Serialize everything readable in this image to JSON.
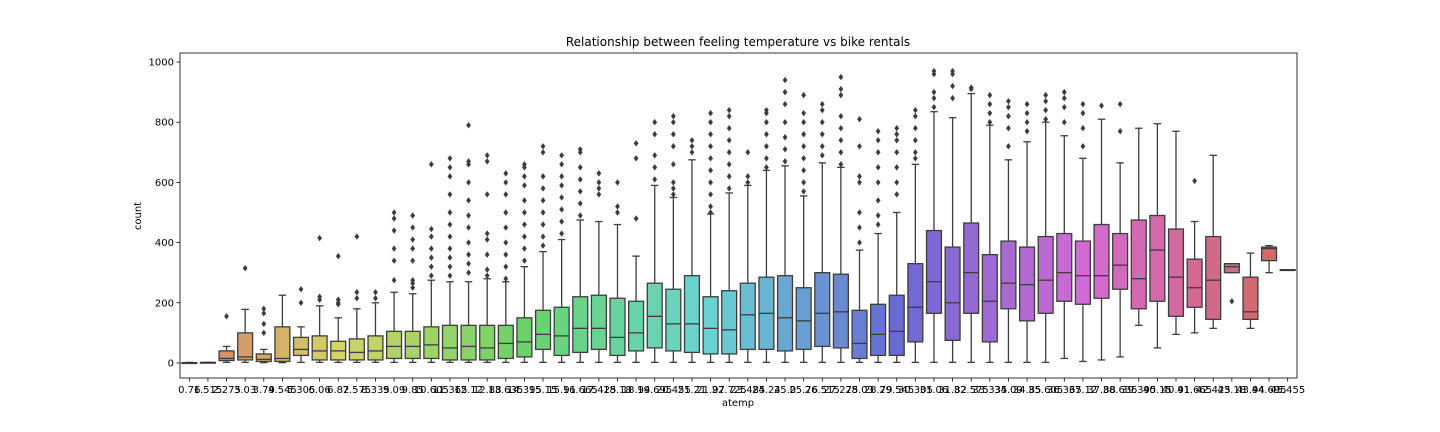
{
  "chart_data": {
    "type": "box",
    "title": "Relationship between feeling temperature vs bike rentals",
    "xlabel": "atemp",
    "ylabel": "count",
    "ylim": [
      -50,
      1030
    ],
    "yticks": [
      0,
      200,
      400,
      600,
      800,
      1000
    ],
    "grid": false,
    "categories": [
      "0.76",
      "1.515",
      "2.275",
      "3.03",
      "3.79",
      "4.545",
      "5.305",
      "6.06",
      "6.82",
      "7.575",
      "8.335",
      "9.09",
      "9.85",
      "10.605",
      "11.365",
      "12.12",
      "12.88",
      "13.635",
      "14.395",
      "15.15",
      "15.91",
      "16.665",
      "17.425",
      "18.18",
      "18.94",
      "19.695",
      "20.455",
      "21.21",
      "21.97",
      "22.725",
      "23.485",
      "24.24",
      "25.0",
      "25.76",
      "26.515",
      "27.275",
      "28.03",
      "28.79",
      "29.545",
      "30.305",
      "31.06",
      "31.82",
      "32.575",
      "33.335",
      "34.09",
      "34.85",
      "35.605",
      "36.365",
      "37.12",
      "37.88",
      "38.635",
      "39.395",
      "40.15",
      "40.91",
      "41.665",
      "42.425",
      "43.18",
      "43.94",
      "44.695",
      "45.455"
    ],
    "tick_labels": [
      "0.76",
      "1.515",
      "2.275",
      "3.03",
      "3.79",
      "4.545",
      "5.305",
      "6.06",
      "6.82",
      "7.575",
      "8.335",
      "9.09",
      "9.85",
      "10.605",
      "11.365",
      "12.12",
      "12.88",
      "13.635",
      "14.395",
      "15.15",
      "15.91",
      "16.665",
      "17.425",
      "18.18",
      "18.94",
      "19.695",
      "20.455",
      "21.21",
      "21.97",
      "22.725",
      "23.485",
      "24.24",
      "25.0",
      "25.76",
      "26.515",
      "27.275",
      "28.03",
      "28.79",
      "29.545",
      "30.305",
      "31.06",
      "31.82",
      "32.575",
      "33.335",
      "34.09",
      "34.85",
      "35.605",
      "36.365",
      "37.12",
      "37.88",
      "38.635",
      "39.395",
      "40.15",
      "40.91",
      "41.665",
      "42.425",
      "43.18",
      "43.94",
      "44.695",
      "45.455"
    ],
    "boxes": [
      {
        "whislo": 1,
        "q1": 1,
        "med": 1,
        "q3": 1,
        "whishi": 2,
        "fliers": []
      },
      {
        "whislo": 1,
        "q1": 1,
        "med": 1,
        "q3": 2,
        "whishi": 2,
        "fliers": []
      },
      {
        "whislo": 2,
        "q1": 8,
        "med": 15,
        "q3": 40,
        "whishi": 55,
        "fliers": [
          155
        ]
      },
      {
        "whislo": 2,
        "q1": 10,
        "med": 20,
        "q3": 100,
        "whishi": 178,
        "fliers": [
          315
        ]
      },
      {
        "whislo": 1,
        "q1": 5,
        "med": 12,
        "q3": 30,
        "whishi": 45,
        "fliers": [
          100,
          130,
          165,
          180
        ]
      },
      {
        "whislo": 1,
        "q1": 5,
        "med": 15,
        "q3": 120,
        "whishi": 225,
        "fliers": []
      },
      {
        "whislo": 2,
        "q1": 25,
        "med": 45,
        "q3": 85,
        "whishi": 120,
        "fliers": [
          200,
          245
        ]
      },
      {
        "whislo": 2,
        "q1": 10,
        "med": 40,
        "q3": 90,
        "whishi": 190,
        "fliers": [
          210,
          220,
          415
        ]
      },
      {
        "whislo": 2,
        "q1": 10,
        "med": 40,
        "q3": 72,
        "whishi": 150,
        "fliers": [
          195,
          200,
          210,
          355
        ]
      },
      {
        "whislo": 2,
        "q1": 10,
        "med": 35,
        "q3": 80,
        "whishi": 180,
        "fliers": [
          215,
          235,
          420
        ]
      },
      {
        "whislo": 2,
        "q1": 10,
        "med": 40,
        "q3": 90,
        "whishi": 200,
        "fliers": [
          215,
          235
        ]
      },
      {
        "whislo": 2,
        "q1": 15,
        "med": 55,
        "q3": 105,
        "whishi": 235,
        "fliers": [
          275,
          340,
          380,
          440,
          480,
          500
        ]
      },
      {
        "whislo": 2,
        "q1": 15,
        "med": 55,
        "q3": 105,
        "whishi": 230,
        "fliers": [
          250,
          265,
          275,
          340,
          380,
          410,
          450,
          490
        ]
      },
      {
        "whislo": 2,
        "q1": 15,
        "med": 60,
        "q3": 120,
        "whishi": 275,
        "fliers": [
          290,
          320,
          350,
          380,
          420,
          445,
          660
        ]
      },
      {
        "whislo": 2,
        "q1": 10,
        "med": 50,
        "q3": 125,
        "whishi": 270,
        "fliers": [
          290,
          320,
          350,
          380,
          420,
          460,
          500,
          560,
          620,
          650,
          680
        ]
      },
      {
        "whislo": 2,
        "q1": 10,
        "med": 55,
        "q3": 125,
        "whishi": 270,
        "fliers": [
          300,
          330,
          360,
          400,
          450,
          490,
          540,
          600,
          660,
          670,
          790
        ]
      },
      {
        "whislo": 2,
        "q1": 10,
        "med": 50,
        "q3": 125,
        "whishi": 280,
        "fliers": [
          290,
          310,
          360,
          410,
          430,
          560,
          670,
          690
        ]
      },
      {
        "whislo": 2,
        "q1": 15,
        "med": 65,
        "q3": 125,
        "whishi": 270,
        "fliers": [
          280,
          320,
          360,
          400,
          450,
          500,
          560,
          600,
          630
        ]
      },
      {
        "whislo": 2,
        "q1": 20,
        "med": 70,
        "q3": 150,
        "whishi": 320,
        "fliers": [
          340,
          380,
          420,
          460,
          500,
          540,
          590,
          620,
          650,
          660
        ]
      },
      {
        "whislo": 2,
        "q1": 45,
        "med": 95,
        "q3": 175,
        "whishi": 370,
        "fliers": [
          390,
          420,
          460,
          500,
          540,
          580,
          620,
          700,
          720
        ]
      },
      {
        "whislo": 2,
        "q1": 25,
        "med": 90,
        "q3": 185,
        "whishi": 410,
        "fliers": [
          430,
          470,
          510,
          550,
          590,
          620,
          660,
          690
        ]
      },
      {
        "whislo": 2,
        "q1": 35,
        "med": 115,
        "q3": 220,
        "whishi": 475,
        "fliers": [
          490,
          530,
          570,
          610,
          650,
          700,
          710
        ]
      },
      {
        "whislo": 2,
        "q1": 45,
        "med": 115,
        "q3": 225,
        "whishi": 470,
        "fliers": [
          560,
          580,
          600,
          630
        ]
      },
      {
        "whislo": 2,
        "q1": 25,
        "med": 85,
        "q3": 215,
        "whishi": 460,
        "fliers": [
          500,
          520,
          600
        ]
      },
      {
        "whislo": 2,
        "q1": 40,
        "med": 100,
        "q3": 205,
        "whishi": 355,
        "fliers": [
          480,
          680,
          730
        ]
      },
      {
        "whislo": 2,
        "q1": 50,
        "med": 155,
        "q3": 265,
        "whishi": 590,
        "fliers": [
          610,
          650,
          690,
          760,
          800
        ]
      },
      {
        "whislo": 2,
        "q1": 40,
        "med": 130,
        "q3": 245,
        "whishi": 550,
        "fliers": [
          560,
          580,
          600,
          660,
          720,
          760,
          800,
          820
        ]
      },
      {
        "whislo": 2,
        "q1": 35,
        "med": 130,
        "q3": 290,
        "whishi": 675,
        "fliers": [
          700,
          720,
          740
        ]
      },
      {
        "whislo": 2,
        "q1": 30,
        "med": 115,
        "q3": 220,
        "whishi": 495,
        "fliers": [
          500,
          520,
          560,
          600,
          640,
          680,
          720,
          760,
          800,
          830
        ]
      },
      {
        "whislo": 2,
        "q1": 30,
        "med": 110,
        "q3": 240,
        "whishi": 565,
        "fliers": [
          580,
          620,
          660,
          700,
          740,
          780,
          820,
          840
        ]
      },
      {
        "whislo": 2,
        "q1": 45,
        "med": 160,
        "q3": 265,
        "whishi": 590,
        "fliers": [
          600,
          620,
          700
        ]
      },
      {
        "whislo": 2,
        "q1": 45,
        "med": 165,
        "q3": 285,
        "whishi": 640,
        "fliers": [
          650,
          680,
          720,
          760,
          800,
          830,
          840
        ]
      },
      {
        "whislo": 2,
        "q1": 40,
        "med": 150,
        "q3": 290,
        "whishi": 655,
        "fliers": [
          670,
          710,
          750,
          800,
          860,
          900,
          940
        ]
      },
      {
        "whislo": 2,
        "q1": 45,
        "med": 140,
        "q3": 250,
        "whishi": 555,
        "fliers": [
          570,
          600,
          640,
          680,
          720,
          760,
          800,
          830,
          890
        ]
      },
      {
        "whislo": 2,
        "q1": 55,
        "med": 165,
        "q3": 300,
        "whishi": 665,
        "fliers": [
          690,
          720,
          760,
          800,
          840,
          860
        ]
      },
      {
        "whislo": 2,
        "q1": 50,
        "med": 170,
        "q3": 295,
        "whishi": 650,
        "fliers": [
          660,
          700,
          740,
          780,
          820,
          890,
          910,
          950
        ]
      },
      {
        "whislo": 2,
        "q1": 15,
        "med": 65,
        "q3": 175,
        "whishi": 375,
        "fliers": [
          400,
          450,
          500,
          600,
          620,
          720,
          810
        ]
      },
      {
        "whislo": 2,
        "q1": 25,
        "med": 95,
        "q3": 195,
        "whishi": 430,
        "fliers": [
          460,
          490,
          540,
          600,
          650,
          700,
          740,
          770
        ]
      },
      {
        "whislo": 2,
        "q1": 25,
        "med": 105,
        "q3": 225,
        "whishi": 500,
        "fliers": [
          560,
          600,
          650,
          700,
          740,
          760,
          780
        ]
      },
      {
        "whislo": 2,
        "q1": 70,
        "med": 185,
        "q3": 330,
        "whishi": 660,
        "fliers": [
          680,
          700,
          740,
          780,
          820,
          840
        ]
      },
      {
        "whislo": 2,
        "q1": 165,
        "med": 270,
        "q3": 440,
        "whishi": 835,
        "fliers": [
          850,
          880,
          900,
          960,
          970
        ]
      },
      {
        "whislo": 2,
        "q1": 75,
        "med": 200,
        "q3": 385,
        "whishi": 815,
        "fliers": [
          880,
          920,
          960,
          970
        ]
      },
      {
        "whislo": 2,
        "q1": 165,
        "med": 300,
        "q3": 465,
        "whishi": 895,
        "fliers": [
          910,
          915
        ]
      },
      {
        "whislo": 2,
        "q1": 70,
        "med": 205,
        "q3": 360,
        "whishi": 790,
        "fliers": [
          800,
          830,
          860,
          890
        ]
      },
      {
        "whislo": 2,
        "q1": 180,
        "med": 265,
        "q3": 405,
        "whishi": 675,
        "fliers": [
          720,
          780,
          820,
          850,
          870
        ]
      },
      {
        "whislo": 2,
        "q1": 140,
        "med": 260,
        "q3": 385,
        "whishi": 735,
        "fliers": [
          770,
          800,
          830,
          860
        ]
      },
      {
        "whislo": 2,
        "q1": 165,
        "med": 275,
        "q3": 420,
        "whishi": 800,
        "fliers": [
          810,
          840,
          870,
          890
        ]
      },
      {
        "whislo": 15,
        "q1": 205,
        "med": 300,
        "q3": 430,
        "whishi": 755,
        "fliers": [
          800,
          850,
          880,
          900
        ]
      },
      {
        "whislo": 5,
        "q1": 195,
        "med": 290,
        "q3": 405,
        "whishi": 680,
        "fliers": [
          720,
          780,
          830,
          860
        ]
      },
      {
        "whislo": 10,
        "q1": 215,
        "med": 290,
        "q3": 460,
        "whishi": 810,
        "fliers": [
          855
        ]
      },
      {
        "whislo": 20,
        "q1": 245,
        "med": 325,
        "q3": 430,
        "whishi": 665,
        "fliers": [
          770,
          860
        ]
      },
      {
        "whislo": 125,
        "q1": 180,
        "med": 280,
        "q3": 475,
        "whishi": 780,
        "fliers": []
      },
      {
        "whislo": 50,
        "q1": 205,
        "med": 375,
        "q3": 490,
        "whishi": 795,
        "fliers": []
      },
      {
        "whislo": 95,
        "q1": 155,
        "med": 285,
        "q3": 445,
        "whishi": 770,
        "fliers": []
      },
      {
        "whislo": 100,
        "q1": 185,
        "med": 250,
        "q3": 345,
        "whishi": 470,
        "fliers": [
          605
        ]
      },
      {
        "whislo": 115,
        "q1": 145,
        "med": 275,
        "q3": 420,
        "whishi": 690,
        "fliers": []
      },
      {
        "whislo": 300,
        "q1": 300,
        "med": 320,
        "q3": 330,
        "whishi": 330,
        "fliers": [
          205
        ]
      },
      {
        "whislo": 115,
        "q1": 145,
        "med": 170,
        "q3": 285,
        "whishi": 365,
        "fliers": []
      },
      {
        "whislo": 300,
        "q1": 340,
        "med": 380,
        "q3": 385,
        "whishi": 390,
        "fliers": []
      },
      {
        "whislo": 310,
        "q1": 310,
        "med": 310,
        "q3": 310,
        "whishi": 310,
        "fliers": []
      }
    ]
  }
}
